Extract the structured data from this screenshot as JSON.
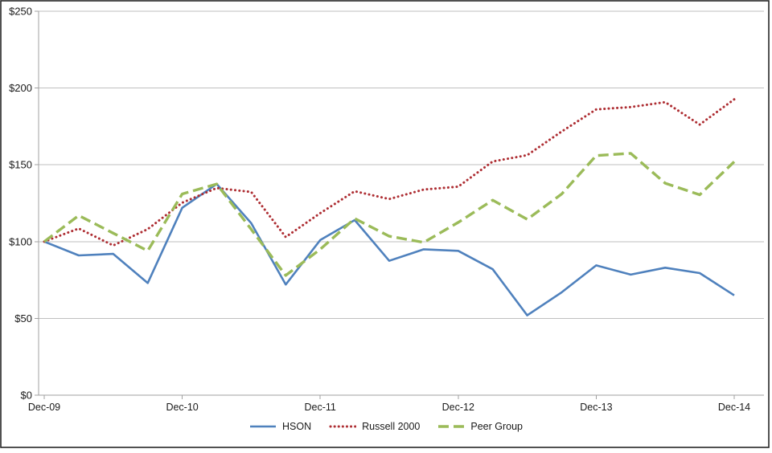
{
  "chart_data": {
    "type": "line",
    "title": "",
    "x_tick_labels": [
      "Dec-09",
      "Dec-10",
      "Dec-11",
      "Dec-12",
      "Dec-13",
      "Dec-14"
    ],
    "y_tick_labels": [
      "$0",
      "$50",
      "$100",
      "$150",
      "$200",
      "$250"
    ],
    "ylim": [
      0,
      250
    ],
    "y_step": 50,
    "x_frequency": "quarterly",
    "points_per_series": 21,
    "grid": "horizontal gridlines every $50",
    "legend_position": "bottom-center",
    "series": [
      {
        "name": "HSON",
        "style": "solid",
        "color": "#4F81BD",
        "values": [
          100,
          91,
          92,
          73,
          122,
          137.5,
          112,
          72,
          101,
          114,
          87.5,
          95,
          94,
          82,
          52,
          67,
          84.5,
          78.5,
          83,
          79.5,
          65
        ]
      },
      {
        "name": "Russell 2000",
        "style": "dotted",
        "color": "#AE2E33",
        "values": [
          100,
          108.5,
          97.5,
          108.1,
          125.3,
          134.9,
          132.3,
          103,
          118.5,
          132.8,
          127.7,
          133.9,
          135.8,
          152.2,
          156.3,
          171.7,
          186.1,
          187.6,
          190.8,
          176.2,
          192.6
        ]
      },
      {
        "name": "Peer Group",
        "style": "dashed",
        "color": "#9BBB59",
        "values": [
          100,
          117,
          105.5,
          94,
          131,
          137.5,
          108,
          78,
          95,
          115,
          103.5,
          99.5,
          112.5,
          127,
          114.5,
          131,
          156,
          157.5,
          138,
          130.5,
          152
        ]
      }
    ],
    "colors": {
      "gridline": "#BFBFBF",
      "axis": "#A0A0A0",
      "label": "#1A1A1A",
      "background": "#FFFFFF",
      "border": "#262626"
    }
  }
}
